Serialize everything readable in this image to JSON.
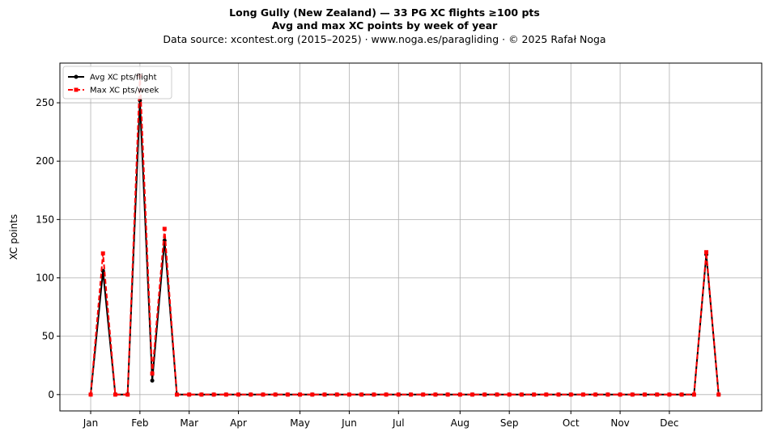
{
  "chart_data": {
    "type": "line",
    "title": "Long Gully (New Zealand)  —  33 PG XC flights ≥100 pts",
    "subtitle": "Avg and max XC points by week of year",
    "source": "Data source: xcontest.org (2015–2025)  ·  www.noga.es/paragliding  ·  © 2025 Rafał Noga",
    "xlabel": "",
    "ylabel": "XC points",
    "xlim": [
      -2.5,
      54.5
    ],
    "ylim": [
      -14,
      284
    ],
    "yticks": [
      0,
      50,
      100,
      150,
      200,
      250
    ],
    "xticks": [
      {
        "label": "Jan",
        "week": 0
      },
      {
        "label": "Feb",
        "week": 4
      },
      {
        "label": "Mar",
        "week": 8
      },
      {
        "label": "Apr",
        "week": 12
      },
      {
        "label": "May",
        "week": 17
      },
      {
        "label": "Jun",
        "week": 21
      },
      {
        "label": "Jul",
        "week": 25
      },
      {
        "label": "Aug",
        "week": 30
      },
      {
        "label": "Sep",
        "week": 34
      },
      {
        "label": "Oct",
        "week": 39
      },
      {
        "label": "Nov",
        "week": 43
      },
      {
        "label": "Dec",
        "week": 47
      }
    ],
    "grid": true,
    "legend_position": "top-left",
    "x": [
      0,
      1,
      2,
      3,
      4,
      5,
      6,
      7,
      8,
      9,
      10,
      11,
      12,
      13,
      14,
      15,
      16,
      17,
      18,
      19,
      20,
      21,
      22,
      23,
      24,
      25,
      26,
      27,
      28,
      29,
      30,
      31,
      32,
      33,
      34,
      35,
      36,
      37,
      38,
      39,
      40,
      41,
      42,
      43,
      44,
      45,
      46,
      47,
      48,
      49,
      50,
      51
    ],
    "series": [
      {
        "name": "Avg XC pts/flight",
        "color": "#000000",
        "marker": "circle",
        "linestyle": "solid",
        "values": [
          0,
          106,
          0,
          0,
          252,
          12,
          132,
          0,
          0,
          0,
          0,
          0,
          0,
          0,
          0,
          0,
          0,
          0,
          0,
          0,
          0,
          0,
          0,
          0,
          0,
          0,
          0,
          0,
          0,
          0,
          0,
          0,
          0,
          0,
          0,
          0,
          0,
          0,
          0,
          0,
          0,
          0,
          0,
          0,
          0,
          0,
          0,
          0,
          0,
          0,
          120,
          0
        ]
      },
      {
        "name": "Max XC pts/week",
        "color": "#ff0000",
        "marker": "square",
        "linestyle": "dashed",
        "values": [
          0,
          121,
          0,
          0,
          273,
          18,
          142,
          0,
          0,
          0,
          0,
          0,
          0,
          0,
          0,
          0,
          0,
          0,
          0,
          0,
          0,
          0,
          0,
          0,
          0,
          0,
          0,
          0,
          0,
          0,
          0,
          0,
          0,
          0,
          0,
          0,
          0,
          0,
          0,
          0,
          0,
          0,
          0,
          0,
          0,
          0,
          0,
          0,
          0,
          0,
          122,
          0
        ]
      }
    ]
  }
}
